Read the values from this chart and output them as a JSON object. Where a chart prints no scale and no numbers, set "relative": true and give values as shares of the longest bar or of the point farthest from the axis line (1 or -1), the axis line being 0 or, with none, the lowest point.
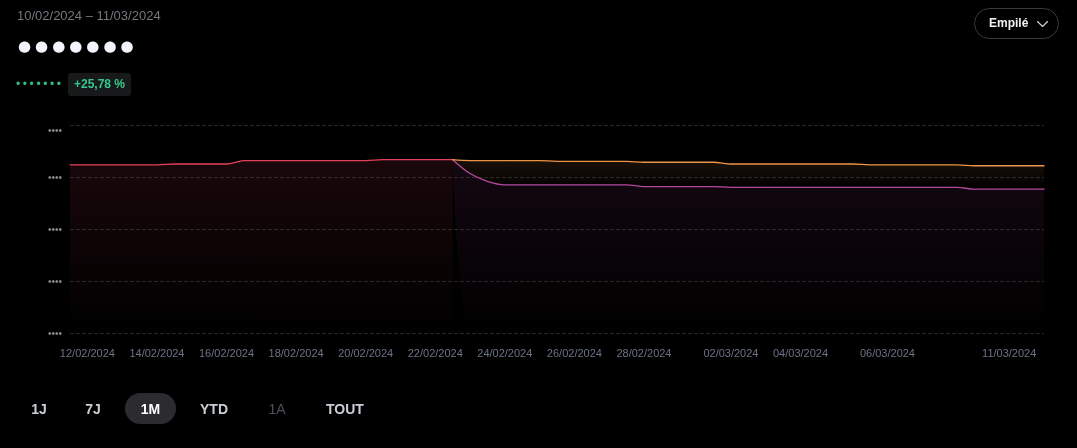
{
  "chart_data": {
    "type": "area",
    "title": "10/02/2024 – 11/03/2024",
    "annotations": [
      "●●●●●●●",
      "•••••••",
      "+25,78 %",
      "Empilé",
      "••••",
      "1J",
      "7J",
      "1M",
      "YTD",
      "1A",
      "TOUT"
    ],
    "categories": [
      null,
      "12/02/2024",
      null,
      null,
      null,
      "14/02/2024",
      null,
      null,
      null,
      "16/02/2024",
      null,
      null,
      null,
      "18/02/2024",
      null,
      null,
      null,
      "20/02/2024",
      null,
      null,
      null,
      "22/02/2024",
      null,
      null,
      null,
      "24/02/2024",
      null,
      null,
      null,
      "26/02/2024",
      null,
      null,
      null,
      "28/02/2024",
      null,
      null,
      null,
      null,
      "02/03/2024",
      null,
      null,
      null,
      "04/03/2024",
      null,
      null,
      null,
      null,
      "06/03/2024",
      null,
      null,
      null,
      null,
      null,
      null,
      "11/03/2024",
      null,
      null
    ],
    "series": [
      {
        "color": "#e3405c",
        "values": [
          0.97,
          0.97,
          0.97,
          0.97,
          0.97,
          0.97,
          0.975,
          0.975,
          0.975,
          0.975,
          0.995,
          0.995,
          0.995,
          0.995,
          0.995,
          0.995,
          0.995,
          0.995,
          1,
          1,
          1,
          1,
          1,
          null,
          null,
          null,
          null,
          null,
          null,
          null,
          null,
          null,
          null,
          null,
          null,
          null,
          null,
          null,
          null,
          null,
          null,
          null,
          null,
          null,
          null,
          null,
          null,
          null,
          null,
          null,
          null,
          null,
          null,
          null,
          null,
          null,
          null
        ]
      },
      {
        "color": "#b4479f",
        "values": [
          null,
          null,
          null,
          null,
          null,
          null,
          null,
          null,
          null,
          null,
          null,
          null,
          null,
          null,
          null,
          null,
          null,
          null,
          null,
          null,
          null,
          null,
          0,
          0.92,
          0.875,
          0.855,
          0.855,
          0.855,
          0.855,
          0.855,
          0.855,
          0.855,
          0.855,
          0.845,
          0.845,
          0.845,
          0.845,
          0.845,
          0.84,
          0.84,
          0.84,
          0.84,
          0.84,
          0.84,
          0.84,
          0.84,
          0.84,
          0.84,
          0.84,
          0.84,
          0.84,
          0.84,
          0.83,
          0.83,
          0.83,
          0.83,
          0.83
        ]
      },
      {
        "color": "#ef9446",
        "values": [
          null,
          null,
          null,
          null,
          null,
          null,
          null,
          null,
          null,
          null,
          null,
          null,
          null,
          null,
          null,
          null,
          null,
          null,
          null,
          null,
          null,
          null,
          0,
          0.075,
          0.12,
          0.14,
          0.14,
          0.14,
          0.135,
          0.135,
          0.135,
          0.135,
          0.135,
          0.14,
          0.14,
          0.14,
          0.14,
          0.14,
          0.135,
          0.135,
          0.135,
          0.135,
          0.135,
          0.135,
          0.135,
          0.135,
          0.13,
          0.13,
          0.13,
          0.13,
          0.13,
          0.13,
          0.135,
          0.135,
          0.135,
          0.135,
          0.135
        ]
      }
    ],
    "stacked": true,
    "relative": true,
    "grid": "y",
    "marker": "none",
    "line_style": "solid"
  }
}
